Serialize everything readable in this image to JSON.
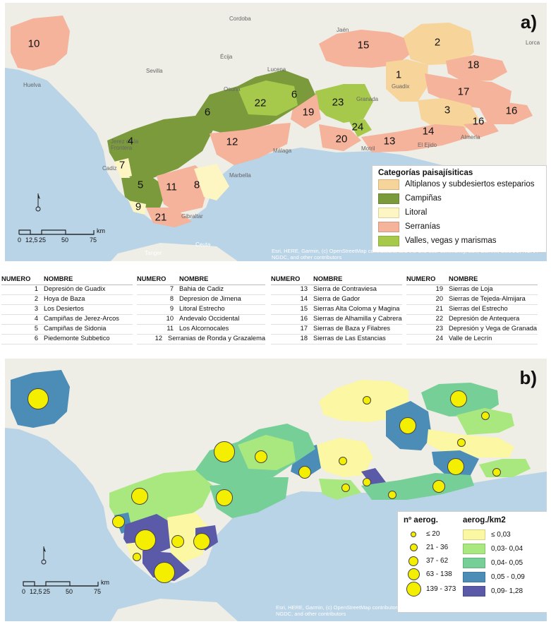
{
  "panel_a": {
    "letter": "a)",
    "place_labels": [
      "Cordoba",
      "Jaén",
      "Lorca",
      "Écija",
      "Sevilla",
      "Huelva",
      "Lucena",
      "Granada",
      "Guadix",
      "Almería",
      "El Ejido",
      "Motril",
      "Málaga",
      "Marbella",
      "Jerez de la Frontera",
      "Cadiz",
      "Gibraltar",
      "Tanger",
      "Ceuta",
      "Osuna"
    ],
    "region_numbers": [
      "10",
      "15",
      "2",
      "1",
      "18",
      "17",
      "3",
      "16",
      "16",
      "6",
      "22",
      "23",
      "6",
      "19",
      "4",
      "24",
      "20",
      "13",
      "14",
      "12",
      "7",
      "5",
      "11",
      "8",
      "9",
      "21"
    ],
    "legend": {
      "title": "Categorías paisajísiticas",
      "items": [
        {
          "label": "Altiplanos y subdesiertos esteparios",
          "color": "#f7d49a"
        },
        {
          "label": "Campiñas",
          "color": "#7b9a3c"
        },
        {
          "label": "Litoral",
          "color": "#fdf6c3"
        },
        {
          "label": "Serranías",
          "color": "#f4b39a"
        },
        {
          "label": "Valles, vegas y marismas",
          "color": "#a6c94c"
        }
      ]
    },
    "scale": {
      "labels": [
        "0",
        "12,5",
        "25",
        "50",
        "75"
      ],
      "unit": "km"
    },
    "attribution": "Esri, HERE, Garmin, (c) OpenStreetMap contributors, and the GIS user community, Esri, Garmin, GEBCO, NOAA NGDC, and other contributors"
  },
  "table": {
    "col_number": "NUMERO",
    "col_name": "NOMBRE",
    "groups": [
      [
        [
          "1",
          "Depresión de Guadix"
        ],
        [
          "2",
          "Hoya de Baza"
        ],
        [
          "3",
          "Los Desiertos"
        ],
        [
          "4",
          "Campiñas de Jerez-Arcos"
        ],
        [
          "5",
          "Campiñas de Sidonia"
        ],
        [
          "6",
          "Piedemonte Subbetico"
        ]
      ],
      [
        [
          "7",
          "Bahia de Cadiz"
        ],
        [
          "8",
          "Depresion de Jimena"
        ],
        [
          "9",
          "Litoral Estrecho"
        ],
        [
          "10",
          "Andevalo Occidental"
        ],
        [
          "11",
          "Los Alcornocales"
        ],
        [
          "12",
          "Serranias de Ronda y Grazalema"
        ]
      ],
      [
        [
          "13",
          "Sierra de Contraviesa"
        ],
        [
          "14",
          "Sierra de Gador"
        ],
        [
          "15",
          "Sierras Alta Coloma y Magina"
        ],
        [
          "16",
          "Sierras de Alhamilla y Cabrera"
        ],
        [
          "17",
          "Sierras de Baza y Filabres"
        ],
        [
          "18",
          "Sierras de Las Estancias"
        ]
      ],
      [
        [
          "19",
          "Sierras de Loja"
        ],
        [
          "20",
          "Sierras de Tejeda-Almijara"
        ],
        [
          "21",
          "Sierras del Estrecho"
        ],
        [
          "22",
          "Depresión de Antequera"
        ],
        [
          "23",
          "Depresión y Vega de Granada"
        ],
        [
          "24",
          "Valle de Lecrín"
        ]
      ]
    ]
  },
  "panel_b": {
    "letter": "b)",
    "legend_count": {
      "title": "nº aerog.",
      "items": [
        "≤ 20",
        "21 - 36",
        "37 - 62",
        "63 - 138",
        "139 - 373"
      ]
    },
    "legend_density": {
      "title": "aerog./km2",
      "items": [
        {
          "label": "≤ 0,03",
          "color": "#fbf7a3"
        },
        {
          "label": "0,03- 0,04",
          "color": "#a9e87f"
        },
        {
          "label": "0,04- 0,05",
          "color": "#77cf98"
        },
        {
          "label": "0,05 - 0,09",
          "color": "#4b8db6"
        },
        {
          "label": "0,09- 1,28",
          "color": "#5a5aa8"
        }
      ]
    },
    "scale": {
      "labels": [
        "0",
        "12,5",
        "25",
        "50",
        "75"
      ],
      "unit": "km"
    },
    "attribution": "Esri, HERE, Garmin, (c) OpenStreetMap contributors, and the GIS user community, Esri, Garmin, GEBCO, NOAA NGDC, and other contributors"
  }
}
